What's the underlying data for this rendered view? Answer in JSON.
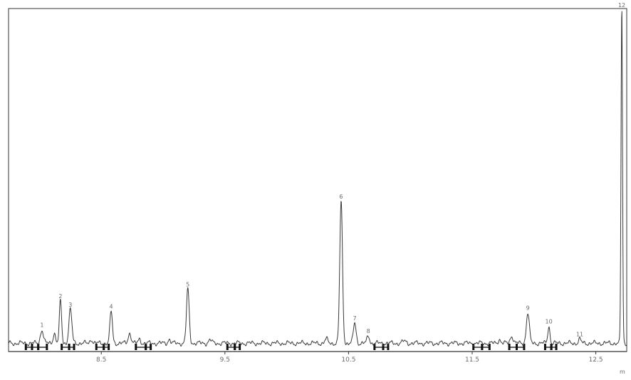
{
  "chart_data": {
    "type": "line",
    "title": "",
    "header_label": "",
    "xlabel": "",
    "ylabel": "",
    "x_unit": "m",
    "xlim": [
      7.75,
      12.75
    ],
    "ylim": [
      0,
      1
    ],
    "grid": false,
    "x_ticks": [
      {
        "value": 8.5,
        "label": "8.5"
      },
      {
        "value": 9.5,
        "label": "9.5"
      },
      {
        "value": 10.5,
        "label": "10.5"
      },
      {
        "value": 11.5,
        "label": "11.5"
      },
      {
        "value": 12.5,
        "label": "12.5"
      }
    ],
    "baseline": 0.012,
    "peaks": [
      {
        "x": 8.02,
        "height": 0.04,
        "width": 0.012,
        "label": "1"
      },
      {
        "x": 8.12,
        "height": 0.03,
        "width": 0.01,
        "label": ""
      },
      {
        "x": 8.17,
        "height": 0.125,
        "width": 0.009,
        "label": "2"
      },
      {
        "x": 8.25,
        "height": 0.1,
        "width": 0.012,
        "label": "3"
      },
      {
        "x": 8.42,
        "height": 0.012,
        "width": 0.01,
        "label": ""
      },
      {
        "x": 8.58,
        "height": 0.095,
        "width": 0.01,
        "label": "4"
      },
      {
        "x": 8.73,
        "height": 0.03,
        "width": 0.012,
        "label": ""
      },
      {
        "x": 8.81,
        "height": 0.012,
        "width": 0.01,
        "label": ""
      },
      {
        "x": 9.05,
        "height": 0.012,
        "width": 0.01,
        "label": ""
      },
      {
        "x": 9.2,
        "height": 0.16,
        "width": 0.011,
        "label": "5"
      },
      {
        "x": 9.38,
        "height": 0.01,
        "width": 0.012,
        "label": ""
      },
      {
        "x": 10.32,
        "height": 0.012,
        "width": 0.012,
        "label": ""
      },
      {
        "x": 10.44,
        "height": 0.42,
        "width": 0.011,
        "label": "6"
      },
      {
        "x": 10.55,
        "height": 0.06,
        "width": 0.011,
        "label": "7"
      },
      {
        "x": 10.66,
        "height": 0.022,
        "width": 0.01,
        "label": "8"
      },
      {
        "x": 10.95,
        "height": 0.006,
        "width": 0.015,
        "label": ""
      },
      {
        "x": 11.72,
        "height": 0.012,
        "width": 0.01,
        "label": ""
      },
      {
        "x": 11.82,
        "height": 0.022,
        "width": 0.012,
        "label": ""
      },
      {
        "x": 11.95,
        "height": 0.09,
        "width": 0.012,
        "label": "9"
      },
      {
        "x": 12.12,
        "height": 0.05,
        "width": 0.009,
        "label": "10"
      },
      {
        "x": 12.37,
        "height": 0.012,
        "width": 0.01,
        "label": "11"
      },
      {
        "x": 12.71,
        "height": 1.0,
        "width": 0.006,
        "label": "12"
      }
    ],
    "integration_markers": [
      {
        "start": 7.89,
        "end": 7.94
      },
      {
        "start": 7.94,
        "end": 7.99
      },
      {
        "start": 7.99,
        "end": 8.06
      },
      {
        "start": 8.18,
        "end": 8.24
      },
      {
        "start": 8.24,
        "end": 8.28
      },
      {
        "start": 8.46,
        "end": 8.52
      },
      {
        "start": 8.52,
        "end": 8.56
      },
      {
        "start": 8.78,
        "end": 8.86
      },
      {
        "start": 8.86,
        "end": 8.9
      },
      {
        "start": 9.52,
        "end": 9.58
      },
      {
        "start": 9.58,
        "end": 9.62
      },
      {
        "start": 10.71,
        "end": 10.78
      },
      {
        "start": 10.78,
        "end": 10.82
      },
      {
        "start": 11.51,
        "end": 11.58
      },
      {
        "start": 11.58,
        "end": 11.64
      },
      {
        "start": 11.8,
        "end": 11.86
      },
      {
        "start": 11.86,
        "end": 11.92
      },
      {
        "start": 12.09,
        "end": 12.14
      },
      {
        "start": 12.14,
        "end": 12.18
      }
    ]
  }
}
